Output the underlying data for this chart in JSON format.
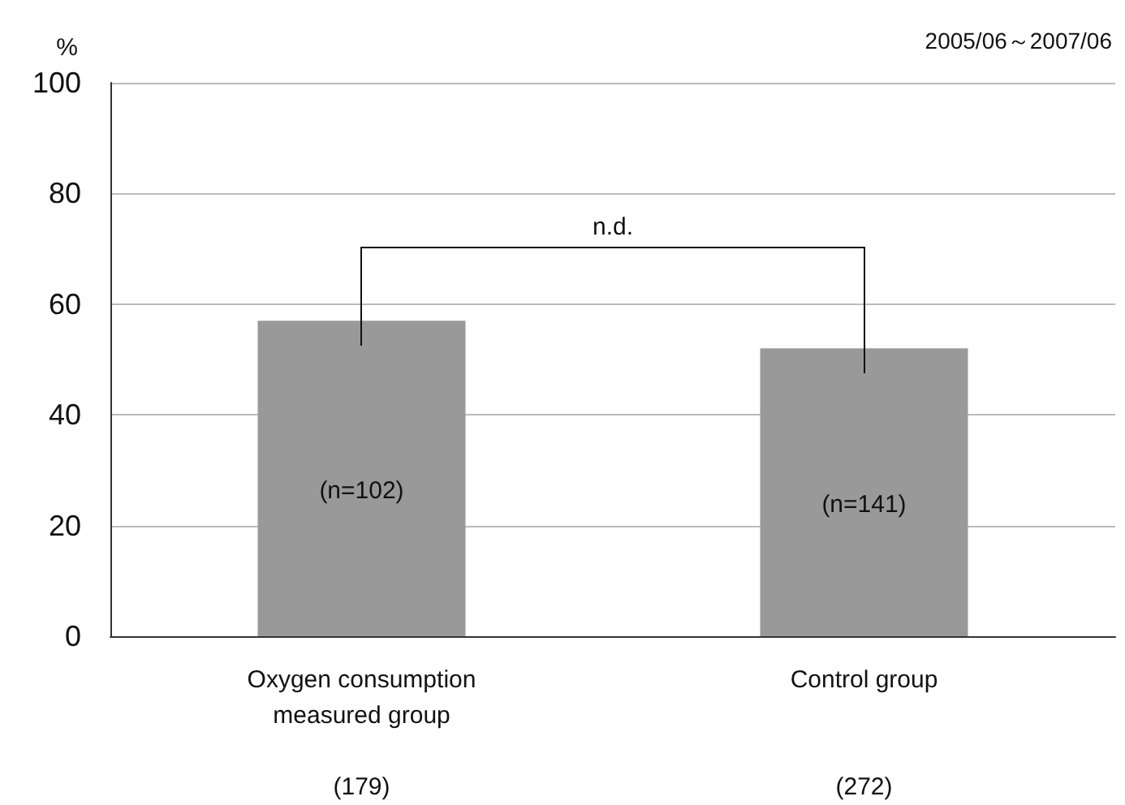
{
  "chart_data": {
    "type": "bar",
    "ylabel": "%",
    "categories": [
      "Oxygen consumption\nmeasured group\n\n(179)",
      "Control group\n\n\n(272)"
    ],
    "values": [
      57,
      52
    ],
    "color": "#999999",
    "ylim": [
      0,
      100
    ],
    "yticks": [
      0,
      20,
      40,
      60,
      80,
      100
    ],
    "grid": "y",
    "annotations": [
      "(n=102)",
      "(n=141)",
      "n.d.",
      "2005/06～2007/06"
    ]
  }
}
